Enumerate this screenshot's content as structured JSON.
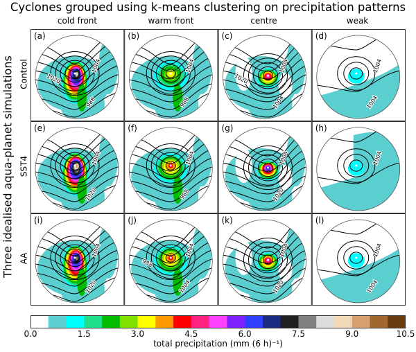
{
  "title": "Cyclones grouped using k-means clustering on precipitation patterns",
  "y_super_label": "Three idealised aqua-planet simulations",
  "columns": [
    "cold front",
    "warm front",
    "centre",
    "weak"
  ],
  "rows": [
    "Control",
    "SST4",
    "AA"
  ],
  "chart_data": {
    "type": "heatmap",
    "title": "Cyclones grouped using k-means clustering on precipitation patterns",
    "panels": [
      {
        "label": "(a)",
        "row": "Control",
        "column": "cold front",
        "contour_labels": [
          "1004",
          "988",
          "1020"
        ],
        "peak_bin": 16
      },
      {
        "label": "(b)",
        "row": "Control",
        "column": "warm front",
        "contour_labels": [
          "1004",
          "988"
        ],
        "peak_bin": 6
      },
      {
        "label": "(c)",
        "row": "Control",
        "column": "centre",
        "contour_labels": [
          "1004",
          "1004",
          "1020"
        ],
        "peak_bin": 10
      },
      {
        "label": "(d)",
        "row": "Control",
        "column": "weak",
        "contour_labels": [
          "1004",
          "1004"
        ],
        "peak_bin": 2
      },
      {
        "label": "(e)",
        "row": "SST4",
        "column": "cold front",
        "contour_labels": [
          "1004",
          "1020"
        ],
        "peak_bin": 18
      },
      {
        "label": "(f)",
        "row": "SST4",
        "column": "warm front",
        "contour_labels": [
          "1004",
          "988"
        ],
        "peak_bin": 8
      },
      {
        "label": "(g)",
        "row": "SST4",
        "column": "centre",
        "contour_labels": [
          "1004",
          "1020"
        ],
        "peak_bin": 13
      },
      {
        "label": "(h)",
        "row": "SST4",
        "column": "weak",
        "contour_labels": [
          "1004"
        ],
        "peak_bin": 2
      },
      {
        "label": "(i)",
        "row": "AA",
        "column": "cold front",
        "contour_labels": [
          "1004",
          "1020"
        ],
        "peak_bin": 15
      },
      {
        "label": "(j)",
        "row": "AA",
        "column": "warm front",
        "contour_labels": [
          "1004",
          "1004",
          "988"
        ],
        "peak_bin": 8
      },
      {
        "label": "(k)",
        "row": "AA",
        "column": "centre",
        "contour_labels": [
          "1004",
          "1020"
        ],
        "peak_bin": 10
      },
      {
        "label": "(l)",
        "row": "AA",
        "column": "weak",
        "contour_labels": [
          "1004",
          "1004"
        ],
        "peak_bin": 2
      }
    ],
    "colorbar": {
      "label": "total precipitation (mm (6 h)⁻¹)",
      "range": [
        0.0,
        10.5
      ],
      "bin_width": 0.5,
      "ticks": [
        "0.0",
        "1.5",
        "3.0",
        "4.5",
        "6.0",
        "7.5",
        "9.0",
        "10.5"
      ],
      "colors": [
        "#ffffff",
        "#5bcfd0",
        "#00ffff",
        "#1ee08a",
        "#00bb00",
        "#80e000",
        "#ffff00",
        "#ff9900",
        "#ff0000",
        "#ff2080",
        "#ff40ff",
        "#8020ff",
        "#3040ff",
        "#1a2a80",
        "#202020",
        "#808080",
        "#dcdcdc",
        "#f0d8b8",
        "#d8a070",
        "#a06830",
        "#6a3a10"
      ]
    }
  }
}
